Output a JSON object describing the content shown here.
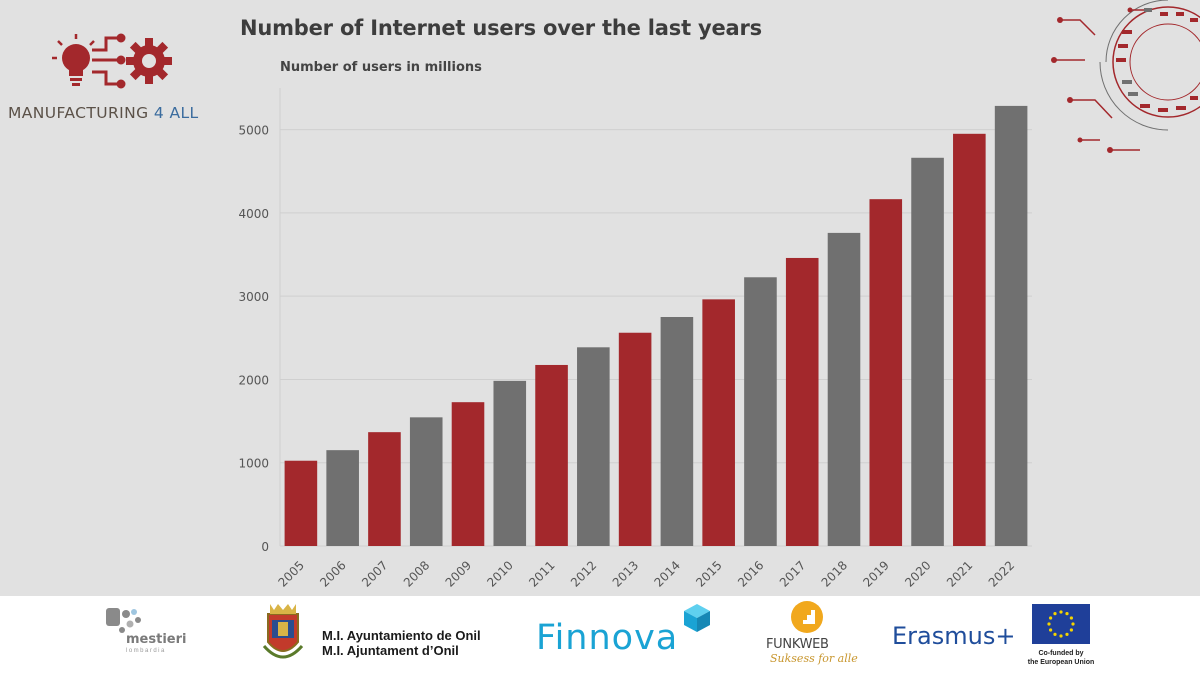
{
  "header": {
    "brand_main": "MANUFACTURING",
    "brand_accent": "4 ALL"
  },
  "chart_data": {
    "type": "bar",
    "title": "Number of Internet users over the last years",
    "ylabel": "Number of users in millions",
    "xlabel": "",
    "categories": [
      "2005",
      "2006",
      "2007",
      "2008",
      "2009",
      "2010",
      "2011",
      "2012",
      "2013",
      "2014",
      "2015",
      "2016",
      "2017",
      "2018",
      "2019",
      "2020",
      "2021",
      "2022"
    ],
    "values": [
      1024,
      1151,
      1367,
      1545,
      1727,
      1983,
      2174,
      2386,
      2561,
      2750,
      2962,
      3227,
      3459,
      3760,
      4165,
      4662,
      4950,
      5285
    ],
    "bar_colors": [
      "#a3282c",
      "#707070",
      "#a3282c",
      "#707070",
      "#a3282c",
      "#707070",
      "#a3282c",
      "#707070",
      "#a3282c",
      "#707070",
      "#a3282c",
      "#707070",
      "#a3282c",
      "#707070",
      "#a3282c",
      "#707070",
      "#a3282c",
      "#707070"
    ],
    "ylim": [
      0,
      5500
    ],
    "yticks": [
      0,
      1000,
      2000,
      3000,
      4000,
      5000
    ],
    "grid": true,
    "legend": "none"
  },
  "footer": {
    "partners": {
      "mestieri": "mestieri",
      "mestieri_sub": "lombardia",
      "onil_line1": "M.I. Ayuntamiento de Onil",
      "onil_line2": "M.I. Ajuntament d’Onil",
      "finnova": "Finnova",
      "funkweb": "FUNKWEB",
      "funkweb_tagline": "Suksess for alle",
      "erasmus": "Erasmus+",
      "eu_line1": "Co-funded by",
      "eu_line2": "the European Union"
    }
  },
  "colors": {
    "accent_red": "#a3282c",
    "bar_gray": "#707070",
    "background": "#e1e1e1"
  }
}
